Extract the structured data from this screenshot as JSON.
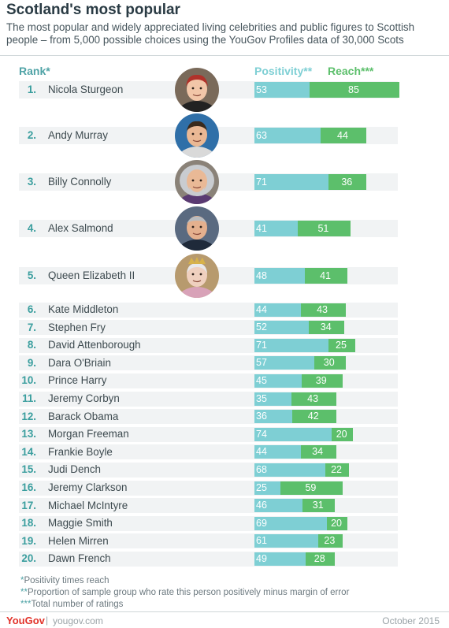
{
  "header": {
    "title": "Scotland's most popular",
    "subtitle": "The most popular and widely appreciated living celebrities and public figures to Scottish people – from 5,000 possible choices using the YouGov Profiles data of 30,000 Scots"
  },
  "chart_data": {
    "type": "bar",
    "stacked": true,
    "columns": {
      "rank": "Rank*",
      "positivity": "Positivity**",
      "reach": "Reach***"
    },
    "categories": [
      "Nicola Sturgeon",
      "Andy Murray",
      "Billy Connolly",
      "Alex Salmond",
      "Queen Elizabeth II",
      "Kate Middleton",
      "Stephen Fry",
      "David Attenborough",
      "Dara O'Briain",
      "Prince Harry",
      "Jeremy Corbyn",
      "Barack Obama",
      "Morgan Freeman",
      "Frankie Boyle",
      "Judi Dench",
      "Jeremy Clarkson",
      "Michael McIntyre",
      "Maggie Smith",
      "Helen Mirren",
      "Dawn French"
    ],
    "ranks": [
      "1.",
      "2.",
      "3.",
      "4.",
      "5.",
      "6.",
      "7.",
      "8.",
      "9.",
      "10.",
      "11.",
      "12.",
      "13.",
      "14.",
      "15.",
      "16.",
      "17.",
      "18.",
      "19.",
      "20."
    ],
    "series": [
      {
        "name": "Positivity**",
        "color": "#7ecfd4",
        "values": [
          53,
          63,
          71,
          41,
          48,
          44,
          52,
          71,
          57,
          45,
          35,
          36,
          74,
          44,
          68,
          25,
          46,
          69,
          61,
          49
        ]
      },
      {
        "name": "Reach***",
        "color": "#5cbf6b",
        "values": [
          85,
          44,
          36,
          51,
          41,
          43,
          34,
          25,
          30,
          39,
          43,
          42,
          20,
          34,
          22,
          59,
          31,
          20,
          23,
          28
        ]
      }
    ],
    "grid": false,
    "legend": "top"
  },
  "portraits": [
    "Nicola Sturgeon portrait",
    "Andy Murray portrait",
    "Billy Connolly portrait",
    "Alex Salmond portrait",
    "Queen Elizabeth II portrait"
  ],
  "notes": [
    {
      "marker": "*",
      "text": "Positivity times reach"
    },
    {
      "marker": "**",
      "text": "Proportion of sample group who rate this person positively minus margin of error"
    },
    {
      "marker": "***",
      "text": "Total number of ratings"
    }
  ],
  "footer": {
    "logo": "YouGov",
    "separator": "|",
    "url": "yougov.com",
    "date": "October 2015"
  }
}
